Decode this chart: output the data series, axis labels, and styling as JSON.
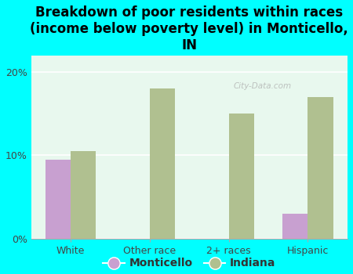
{
  "title": "Breakdown of poor residents within races\n(income below poverty level) in Monticello,\nIN",
  "categories": [
    "White",
    "Other race",
    "2+ races",
    "Hispanic"
  ],
  "monticello_values": [
    9.5,
    0,
    0,
    3.0
  ],
  "indiana_values": [
    10.5,
    18.0,
    15.0,
    17.0
  ],
  "monticello_color": "#c8a0d0",
  "indiana_color": "#b0c090",
  "background_color": "#00ffff",
  "plot_bg_color": "#e8f8ee",
  "grid_color": "#ffffff",
  "yticks": [
    0,
    10,
    20
  ],
  "ylim": [
    0,
    22
  ],
  "title_fontsize": 12,
  "tick_fontsize": 9,
  "legend_fontsize": 10,
  "watermark": "City-Data.com"
}
